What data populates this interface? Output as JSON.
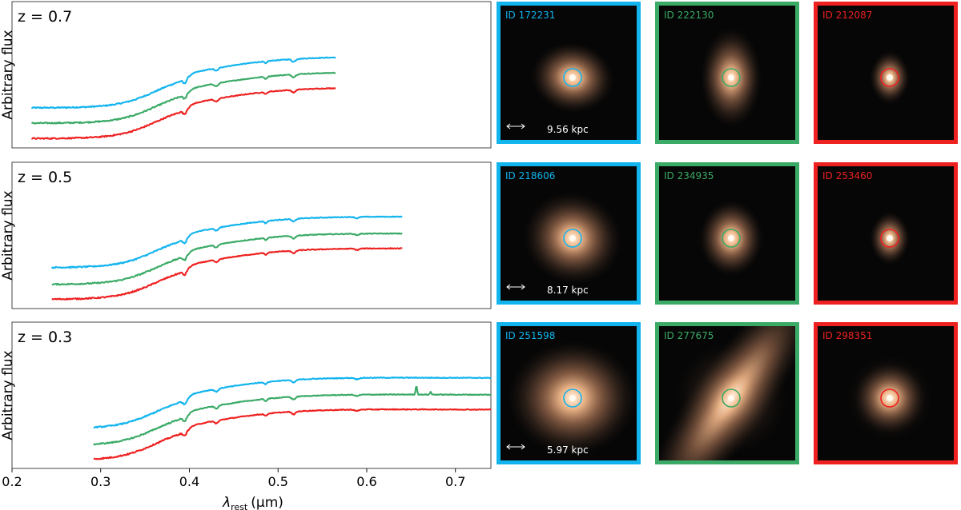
{
  "colors": {
    "blue": "#12b4ee",
    "green": "#3aaa66",
    "red": "#ee2020"
  },
  "chart_data": {
    "type": "line",
    "xlabel_symbol": "λ",
    "xlabel_sub": "rest",
    "xlabel_unit": "(μm)",
    "ylabel": "Arbitrary flux",
    "xlim": [
      0.2,
      0.74
    ],
    "xticks": [
      "0.2",
      "0.3",
      "0.4",
      "0.5",
      "0.6",
      "0.7"
    ],
    "xtick_values": [
      0.2,
      0.3,
      0.4,
      0.5,
      0.6,
      0.7
    ],
    "panels": [
      {
        "label": "z = 0.7",
        "x_range": [
          0.222,
          0.565
        ],
        "series": [
          {
            "name": "blue",
            "offset": 0.62
          },
          {
            "name": "green",
            "offset": 0.31
          },
          {
            "name": "red",
            "offset": 0.0
          }
        ]
      },
      {
        "label": "z = 0.5",
        "x_range": [
          0.245,
          0.64
        ],
        "series": [
          {
            "name": "blue",
            "offset": 0.64
          },
          {
            "name": "green",
            "offset": 0.3
          },
          {
            "name": "red",
            "offset": 0.0
          }
        ]
      },
      {
        "label": "z = 0.3",
        "x_range": [
          0.292,
          0.74
        ],
        "series": [
          {
            "name": "blue",
            "offset": 0.64
          },
          {
            "name": "green",
            "offset": 0.3,
            "emission": [
              0.656,
              0.672
            ]
          },
          {
            "name": "red",
            "offset": 0.0
          }
        ]
      }
    ]
  },
  "galaxies": [
    {
      "id": "ID 172231",
      "color": "blue",
      "scale": "9.56 kpc"
    },
    {
      "id": "ID 222130",
      "color": "green"
    },
    {
      "id": "ID 212087",
      "color": "red"
    },
    {
      "id": "ID 218606",
      "color": "blue",
      "scale": "8.17 kpc"
    },
    {
      "id": "ID 234935",
      "color": "green"
    },
    {
      "id": "ID 253460",
      "color": "red"
    },
    {
      "id": "ID 251598",
      "color": "blue",
      "scale": "5.97 kpc"
    },
    {
      "id": "ID 277675",
      "color": "green"
    },
    {
      "id": "ID 298351",
      "color": "red"
    }
  ]
}
